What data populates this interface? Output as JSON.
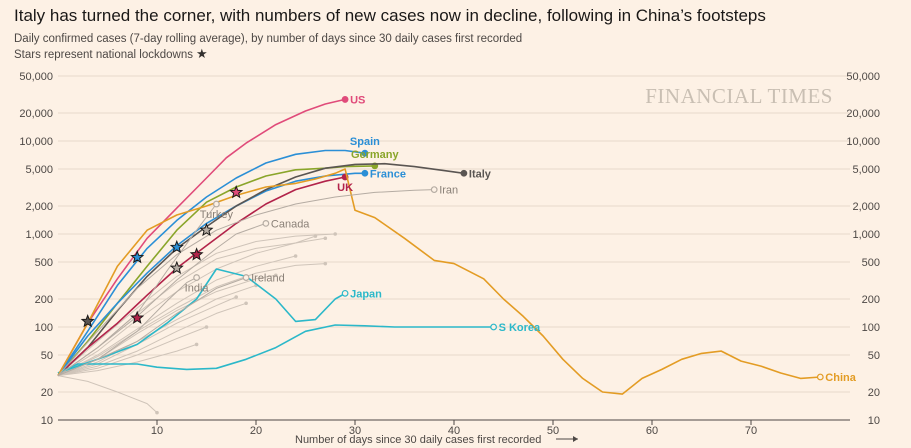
{
  "header": {
    "title": "Italy has turned the corner, with numbers of new cases now in decline, following in China’s footsteps",
    "subtitle": "Daily confirmed cases (7-day rolling average), by number of days since 30 daily cases first recorded",
    "subtitle2": "Stars represent national lockdowns",
    "star_glyph": "★"
  },
  "brand": "FINANCIAL TIMES",
  "chart_data": {
    "type": "line",
    "title": "Italy has turned the corner, with numbers of new cases now in decline, following in China’s footsteps",
    "xlabel": "Number of days since 30 daily cases first recorded",
    "ylabel": "Daily confirmed cases (7-day rolling average)",
    "y_scale": "log",
    "xlim": [
      0,
      80
    ],
    "ylim": [
      10,
      50000
    ],
    "x_ticks": [
      10,
      20,
      30,
      40,
      50,
      60,
      70
    ],
    "x_tick_labels": [
      "10",
      "20",
      "30",
      "40",
      "50",
      "60",
      "70"
    ],
    "y_ticks": [
      10,
      20,
      50,
      100,
      200,
      500,
      1000,
      2000,
      5000,
      10000,
      20000,
      50000
    ],
    "y_tick_labels": [
      "10",
      "20",
      "50",
      "100",
      "200",
      "500",
      "1,000",
      "2,000",
      "5,000",
      "10,000",
      "20,000",
      "50,000"
    ],
    "series": [
      {
        "name": "US",
        "color": "#e04b7a",
        "label_side": "right",
        "x": [
          0,
          3,
          6,
          9,
          12,
          15,
          17,
          19,
          22,
          25,
          27,
          29
        ],
        "y": [
          30,
          110,
          330,
          900,
          1900,
          4000,
          6600,
          9500,
          15000,
          21000,
          25000,
          28000
        ]
      },
      {
        "name": "Spain",
        "color": "#2b8fd6",
        "label_side": "above",
        "x": [
          0,
          3,
          6,
          9,
          12,
          15,
          18,
          21,
          24,
          27,
          29,
          31
        ],
        "y": [
          30,
          90,
          280,
          700,
          1400,
          2500,
          4000,
          5800,
          7200,
          7900,
          7900,
          7400
        ]
      },
      {
        "name": "Germany",
        "color": "#8aa52a",
        "label_side": "above",
        "x": [
          0,
          3,
          6,
          9,
          12,
          15,
          18,
          21,
          24,
          27,
          29,
          32
        ],
        "y": [
          30,
          70,
          180,
          450,
          1100,
          2200,
          3200,
          4200,
          4900,
          5100,
          5300,
          5400
        ]
      },
      {
        "name": "France",
        "color": "#2b8fd6",
        "label_side": "right",
        "x": [
          0,
          3,
          6,
          9,
          12,
          15,
          18,
          21,
          24,
          27,
          30,
          31
        ],
        "y": [
          30,
          80,
          180,
          380,
          750,
          1300,
          2000,
          2900,
          3700,
          4200,
          4500,
          4500
        ]
      },
      {
        "name": "Italy",
        "color": "#5a5552",
        "label_side": "right",
        "x": [
          0,
          3,
          6,
          9,
          12,
          15,
          18,
          21,
          24,
          27,
          30,
          33,
          36,
          39,
          41
        ],
        "y": [
          30,
          60,
          150,
          350,
          700,
          1200,
          2000,
          3000,
          4100,
          5100,
          5600,
          5700,
          5300,
          4800,
          4500
        ]
      },
      {
        "name": "UK",
        "color": "#b2234a",
        "label_side": "below",
        "x": [
          0,
          3,
          6,
          9,
          12,
          15,
          18,
          21,
          24,
          27,
          29
        ],
        "y": [
          30,
          60,
          110,
          220,
          430,
          750,
          1300,
          2100,
          3000,
          3700,
          4100
        ]
      },
      {
        "name": "Japan",
        "color": "#2bb8c9",
        "label_side": "right",
        "x": [
          0,
          4,
          8,
          11,
          14,
          16,
          19,
          22,
          24,
          26,
          28,
          29
        ],
        "y": [
          32,
          45,
          65,
          110,
          200,
          420,
          350,
          200,
          115,
          120,
          200,
          230
        ]
      },
      {
        "name": "S Korea",
        "color": "#2bb8c9",
        "label_side": "right",
        "x": [
          0,
          2,
          4,
          6,
          8,
          10,
          13,
          16,
          19,
          22,
          25,
          28,
          31,
          34,
          37,
          40,
          42,
          44
        ],
        "y": [
          32,
          40,
          40,
          40,
          40,
          37,
          35,
          36,
          45,
          60,
          90,
          105,
          103,
          100,
          100,
          100,
          100,
          100
        ]
      },
      {
        "name": "China",
        "color": "#e39c24",
        "label_side": "right",
        "x": [
          0,
          3,
          6,
          9,
          12,
          15,
          18,
          21,
          24,
          26,
          28,
          29,
          30,
          32,
          35,
          38,
          40,
          43,
          45,
          47,
          49,
          51,
          53,
          55,
          57,
          59,
          61,
          63,
          65,
          67,
          69,
          71,
          73,
          75,
          77
        ],
        "y": [
          30,
          110,
          450,
          1100,
          1600,
          2000,
          2600,
          3200,
          3500,
          3900,
          4500,
          5000,
          1800,
          1500,
          900,
          520,
          480,
          330,
          200,
          130,
          80,
          45,
          28,
          20,
          19,
          28,
          35,
          45,
          52,
          55,
          43,
          38,
          32,
          28,
          29
        ]
      },
      {
        "name": "Iran",
        "color": "#b5aca3",
        "label_side": "right",
        "x": [
          0,
          4,
          8,
          12,
          16,
          20,
          24,
          28,
          32,
          36,
          38
        ],
        "y": [
          30,
          90,
          260,
          600,
          1100,
          1600,
          2100,
          2500,
          2800,
          2950,
          3000
        ]
      },
      {
        "name": "Turkey",
        "color": "#b5aca3",
        "label_side": "below",
        "x": [
          0,
          4,
          8,
          11,
          14,
          16
        ],
        "y": [
          30,
          60,
          140,
          400,
          1100,
          2100
        ]
      },
      {
        "name": "Canada",
        "color": "#b5aca3",
        "label_side": "right",
        "x": [
          0,
          4,
          8,
          12,
          16,
          18,
          21
        ],
        "y": [
          30,
          60,
          130,
          320,
          700,
          1000,
          1300
        ]
      },
      {
        "name": "India",
        "color": "#b5aca3",
        "label_side": "below",
        "x": [
          0,
          4,
          8,
          11,
          13,
          14
        ],
        "y": [
          30,
          45,
          90,
          190,
          300,
          340
        ]
      },
      {
        "name": "Ireland",
        "color": "#b5aca3",
        "label_side": "right",
        "x": [
          0,
          4,
          8,
          12,
          16,
          19
        ],
        "y": [
          30,
          45,
          70,
          140,
          260,
          340
        ]
      }
    ],
    "background_series": [
      {
        "x": [
          0,
          4,
          8,
          12,
          16,
          20,
          24,
          28
        ],
        "y": [
          30,
          70,
          160,
          350,
          620,
          830,
          950,
          1000
        ]
      },
      {
        "x": [
          0,
          4,
          8,
          12,
          16,
          20,
          24,
          27
        ],
        "y": [
          30,
          60,
          140,
          300,
          540,
          700,
          800,
          900
        ]
      },
      {
        "x": [
          0,
          4,
          8,
          12,
          16,
          20,
          24,
          26
        ],
        "y": [
          30,
          55,
          120,
          240,
          420,
          620,
          800,
          950
        ]
      },
      {
        "x": [
          0,
          4,
          8,
          12,
          16,
          20,
          24
        ],
        "y": [
          30,
          50,
          95,
          180,
          320,
          450,
          580
        ]
      },
      {
        "x": [
          0,
          4,
          8,
          12,
          16,
          20,
          24,
          27
        ],
        "y": [
          30,
          48,
          90,
          160,
          270,
          380,
          460,
          480
        ]
      },
      {
        "x": [
          0,
          4,
          8,
          12,
          16,
          20
        ],
        "y": [
          30,
          42,
          70,
          120,
          200,
          280
        ]
      },
      {
        "x": [
          0,
          4,
          8,
          12,
          16,
          19
        ],
        "y": [
          30,
          38,
          55,
          90,
          140,
          180
        ]
      },
      {
        "x": [
          0,
          4,
          8,
          12,
          15
        ],
        "y": [
          30,
          36,
          50,
          75,
          100
        ]
      },
      {
        "x": [
          0,
          4,
          8,
          12,
          14
        ],
        "y": [
          30,
          34,
          42,
          55,
          65
        ]
      },
      {
        "x": [
          0,
          3,
          6,
          9,
          10
        ],
        "y": [
          30,
          26,
          20,
          15,
          12
        ]
      },
      {
        "x": [
          0,
          4,
          8,
          12,
          16,
          20,
          22
        ],
        "y": [
          30,
          45,
          85,
          150,
          240,
          330,
          360
        ]
      },
      {
        "x": [
          0,
          4,
          8,
          12,
          16,
          18
        ],
        "y": [
          30,
          40,
          65,
          110,
          170,
          210
        ]
      }
    ],
    "lockdowns": [
      {
        "country": "Italy",
        "x": 3,
        "y": 115
      },
      {
        "country": "UK",
        "x": 8,
        "y": 125
      },
      {
        "country": "Spain",
        "x": 8,
        "y": 560
      },
      {
        "country": "India",
        "x": 12,
        "y": 430
      },
      {
        "country": "France",
        "x": 12,
        "y": 720
      },
      {
        "country": "UK",
        "x": 14,
        "y": 600
      },
      {
        "country": "Turkey",
        "x": 15,
        "y": 1100
      },
      {
        "country": "US",
        "x": 18,
        "y": 2800
      }
    ]
  }
}
